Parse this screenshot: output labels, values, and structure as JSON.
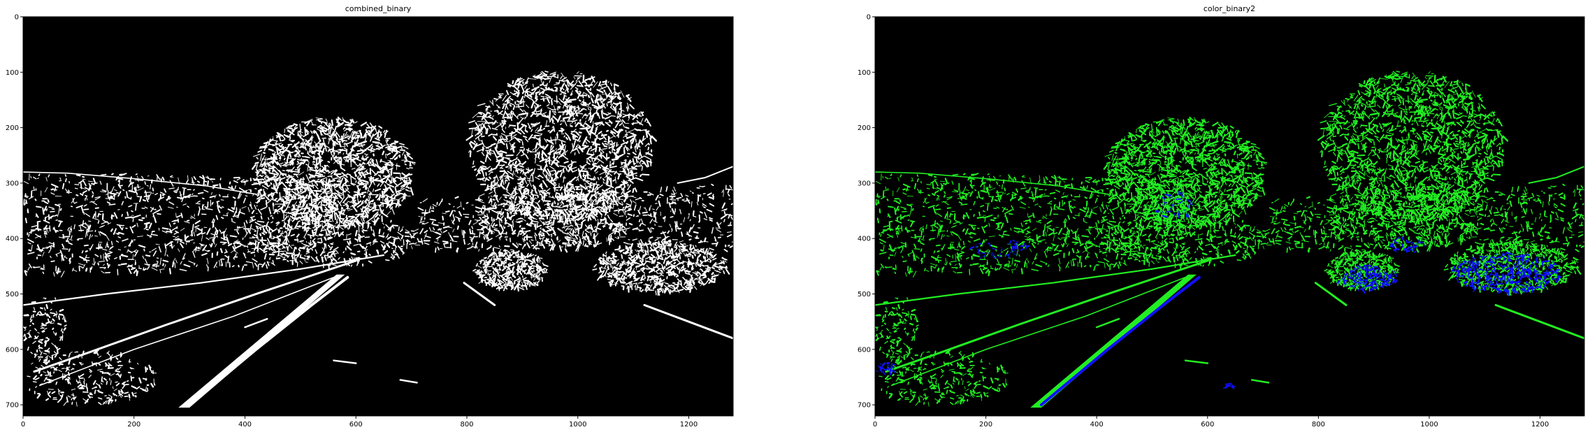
{
  "figure": {
    "panels": [
      {
        "id": "left",
        "title": "combined_binary",
        "mask_colors": {
          "primary": "#ffffff",
          "secondary": "#ffffff"
        },
        "x_ticks": [
          0,
          200,
          400,
          600,
          800,
          1000,
          1200
        ],
        "y_ticks": [
          0,
          100,
          200,
          300,
          400,
          500,
          600,
          700
        ],
        "x_range": [
          0,
          1280
        ],
        "y_range": [
          0,
          720
        ]
      },
      {
        "id": "right",
        "title": "color_binary2",
        "mask_colors": {
          "primary": "#22ee22",
          "secondary": "#1010ff"
        },
        "x_ticks": [
          0,
          200,
          400,
          600,
          800,
          1000,
          1200
        ],
        "y_ticks": [
          0,
          100,
          200,
          300,
          400,
          500,
          600,
          700
        ],
        "x_range": [
          0,
          1280
        ],
        "y_range": [
          0,
          720
        ]
      }
    ],
    "background_color": "#000000"
  }
}
